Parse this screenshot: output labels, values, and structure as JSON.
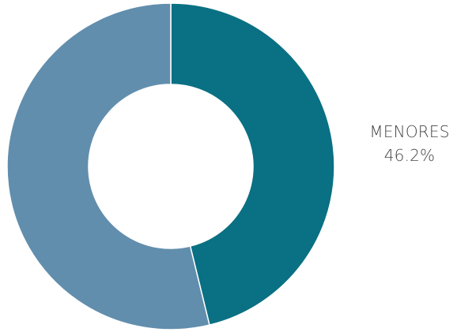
{
  "chart_data": {
    "type": "pie",
    "style": "donut",
    "title": "",
    "slices": [
      {
        "label": "MENORES",
        "value": 46.2,
        "value_label": "46.2%",
        "color": "#0a7083"
      },
      {
        "label": "",
        "value": 53.8,
        "value_label": "",
        "color": "#628ead"
      }
    ],
    "legend": "none",
    "grid": false
  }
}
